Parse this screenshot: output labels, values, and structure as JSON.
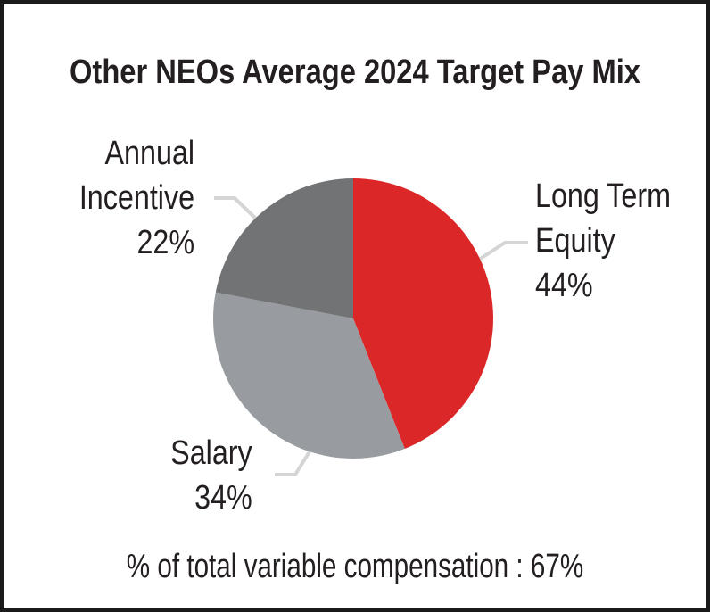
{
  "title": "Other NEOs Average 2024 Target Pay Mix",
  "footnote": "% of total variable compensation : 67%",
  "colors": {
    "text": "#231F20",
    "background": "#FFFFFF",
    "frame_border": "#1A1A1A",
    "leader_line": "#D5D5D5",
    "red": "#DB2727",
    "light_gray": "#989CA0",
    "dark_gray": "#717375"
  },
  "chart_data": {
    "type": "pie",
    "title": "Other NEOs Average 2024 Target Pay Mix",
    "start_angle_deg": 0,
    "direction": "clockwise",
    "legend_position": "none",
    "annotation": "% of total variable compensation : 67%",
    "slices": [
      {
        "label": "Long Term Equity",
        "value": 44,
        "color": "#DB2727"
      },
      {
        "label": "Salary",
        "value": 34,
        "color": "#989CA0"
      },
      {
        "label": "Annual Incentive",
        "value": 22,
        "color": "#717375"
      }
    ],
    "labels": {
      "annual_incentive": {
        "lines": [
          "Annual",
          "Incentive",
          "22%"
        ]
      },
      "long_term_equity": {
        "lines": [
          "Long Term",
          "Equity",
          "44%"
        ]
      },
      "salary": {
        "lines": [
          "Salary",
          "34%"
        ]
      }
    }
  }
}
